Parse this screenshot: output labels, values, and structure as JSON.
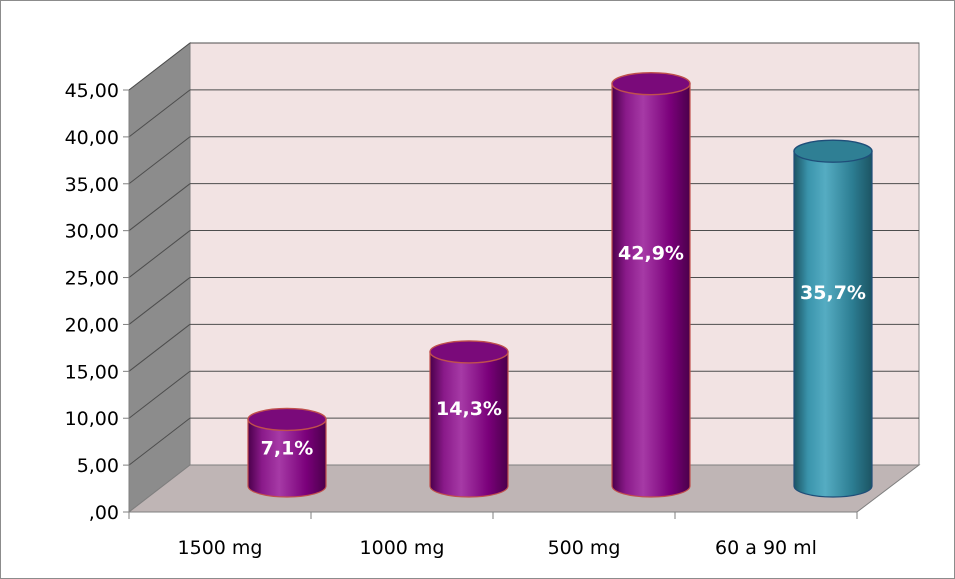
{
  "chart_data": {
    "type": "bar",
    "style": "3d-cylinder",
    "categories": [
      "1500 mg",
      "1000 mg",
      "500 mg",
      "60 a 90 ml"
    ],
    "values": [
      7.1,
      14.3,
      42.9,
      35.7
    ],
    "data_labels": [
      "7,1%",
      "14,3%",
      "42,9%",
      "35,7%"
    ],
    "bar_colors": [
      "#800080",
      "#800080",
      "#800080",
      "#31859c"
    ],
    "y_ticks": [
      ",00",
      "5,00",
      "10,00",
      "15,00",
      "20,00",
      "25,00",
      "30,00",
      "35,00",
      "40,00",
      "45,00"
    ],
    "ylim": [
      0,
      45
    ],
    "title": "",
    "xlabel": "",
    "ylabel": "",
    "grid": true,
    "legend": "none",
    "colors": {
      "back_wall": "#f2e3e3",
      "side_wall": "#8c8c8c",
      "floor": "#bfb5b5",
      "gridline": "#4d4d4d"
    }
  }
}
